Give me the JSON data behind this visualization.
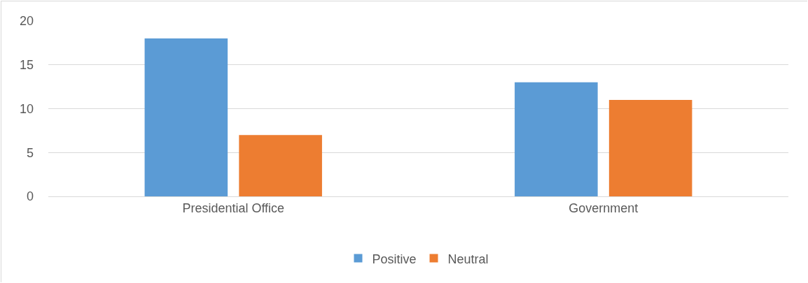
{
  "chart_data": {
    "type": "bar",
    "categories": [
      "Presidential Office",
      "Government"
    ],
    "series": [
      {
        "name": "Positive",
        "color": "#5b9bd5",
        "values": [
          18,
          13
        ]
      },
      {
        "name": "Neutral",
        "color": "#ed7d31",
        "values": [
          7,
          11
        ]
      }
    ],
    "ylim": [
      0,
      20
    ],
    "yticks": [
      0,
      5,
      10,
      15,
      20
    ],
    "grid": "y",
    "legend": "bottom"
  }
}
